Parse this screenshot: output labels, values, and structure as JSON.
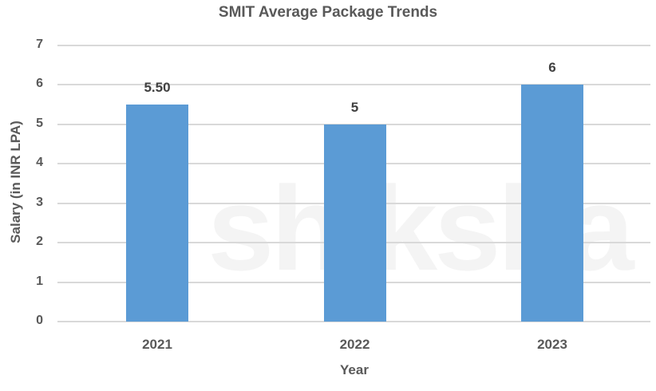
{
  "chart_data": {
    "type": "bar",
    "title": "SMIT Average Package Trends",
    "xlabel": "Year",
    "ylabel": "Salary (in INR LPA)",
    "categories": [
      "2021",
      "2022",
      "2023"
    ],
    "values": [
      5.5,
      5,
      6
    ],
    "data_labels": [
      "5.50",
      "5",
      "6"
    ],
    "ylim": [
      0,
      7
    ],
    "yticks": [
      "0",
      "1",
      "2",
      "3",
      "4",
      "5",
      "6",
      "7"
    ],
    "grid": true,
    "legend": null,
    "bar_color": "#5b9bd5"
  },
  "watermark": "shiksha"
}
